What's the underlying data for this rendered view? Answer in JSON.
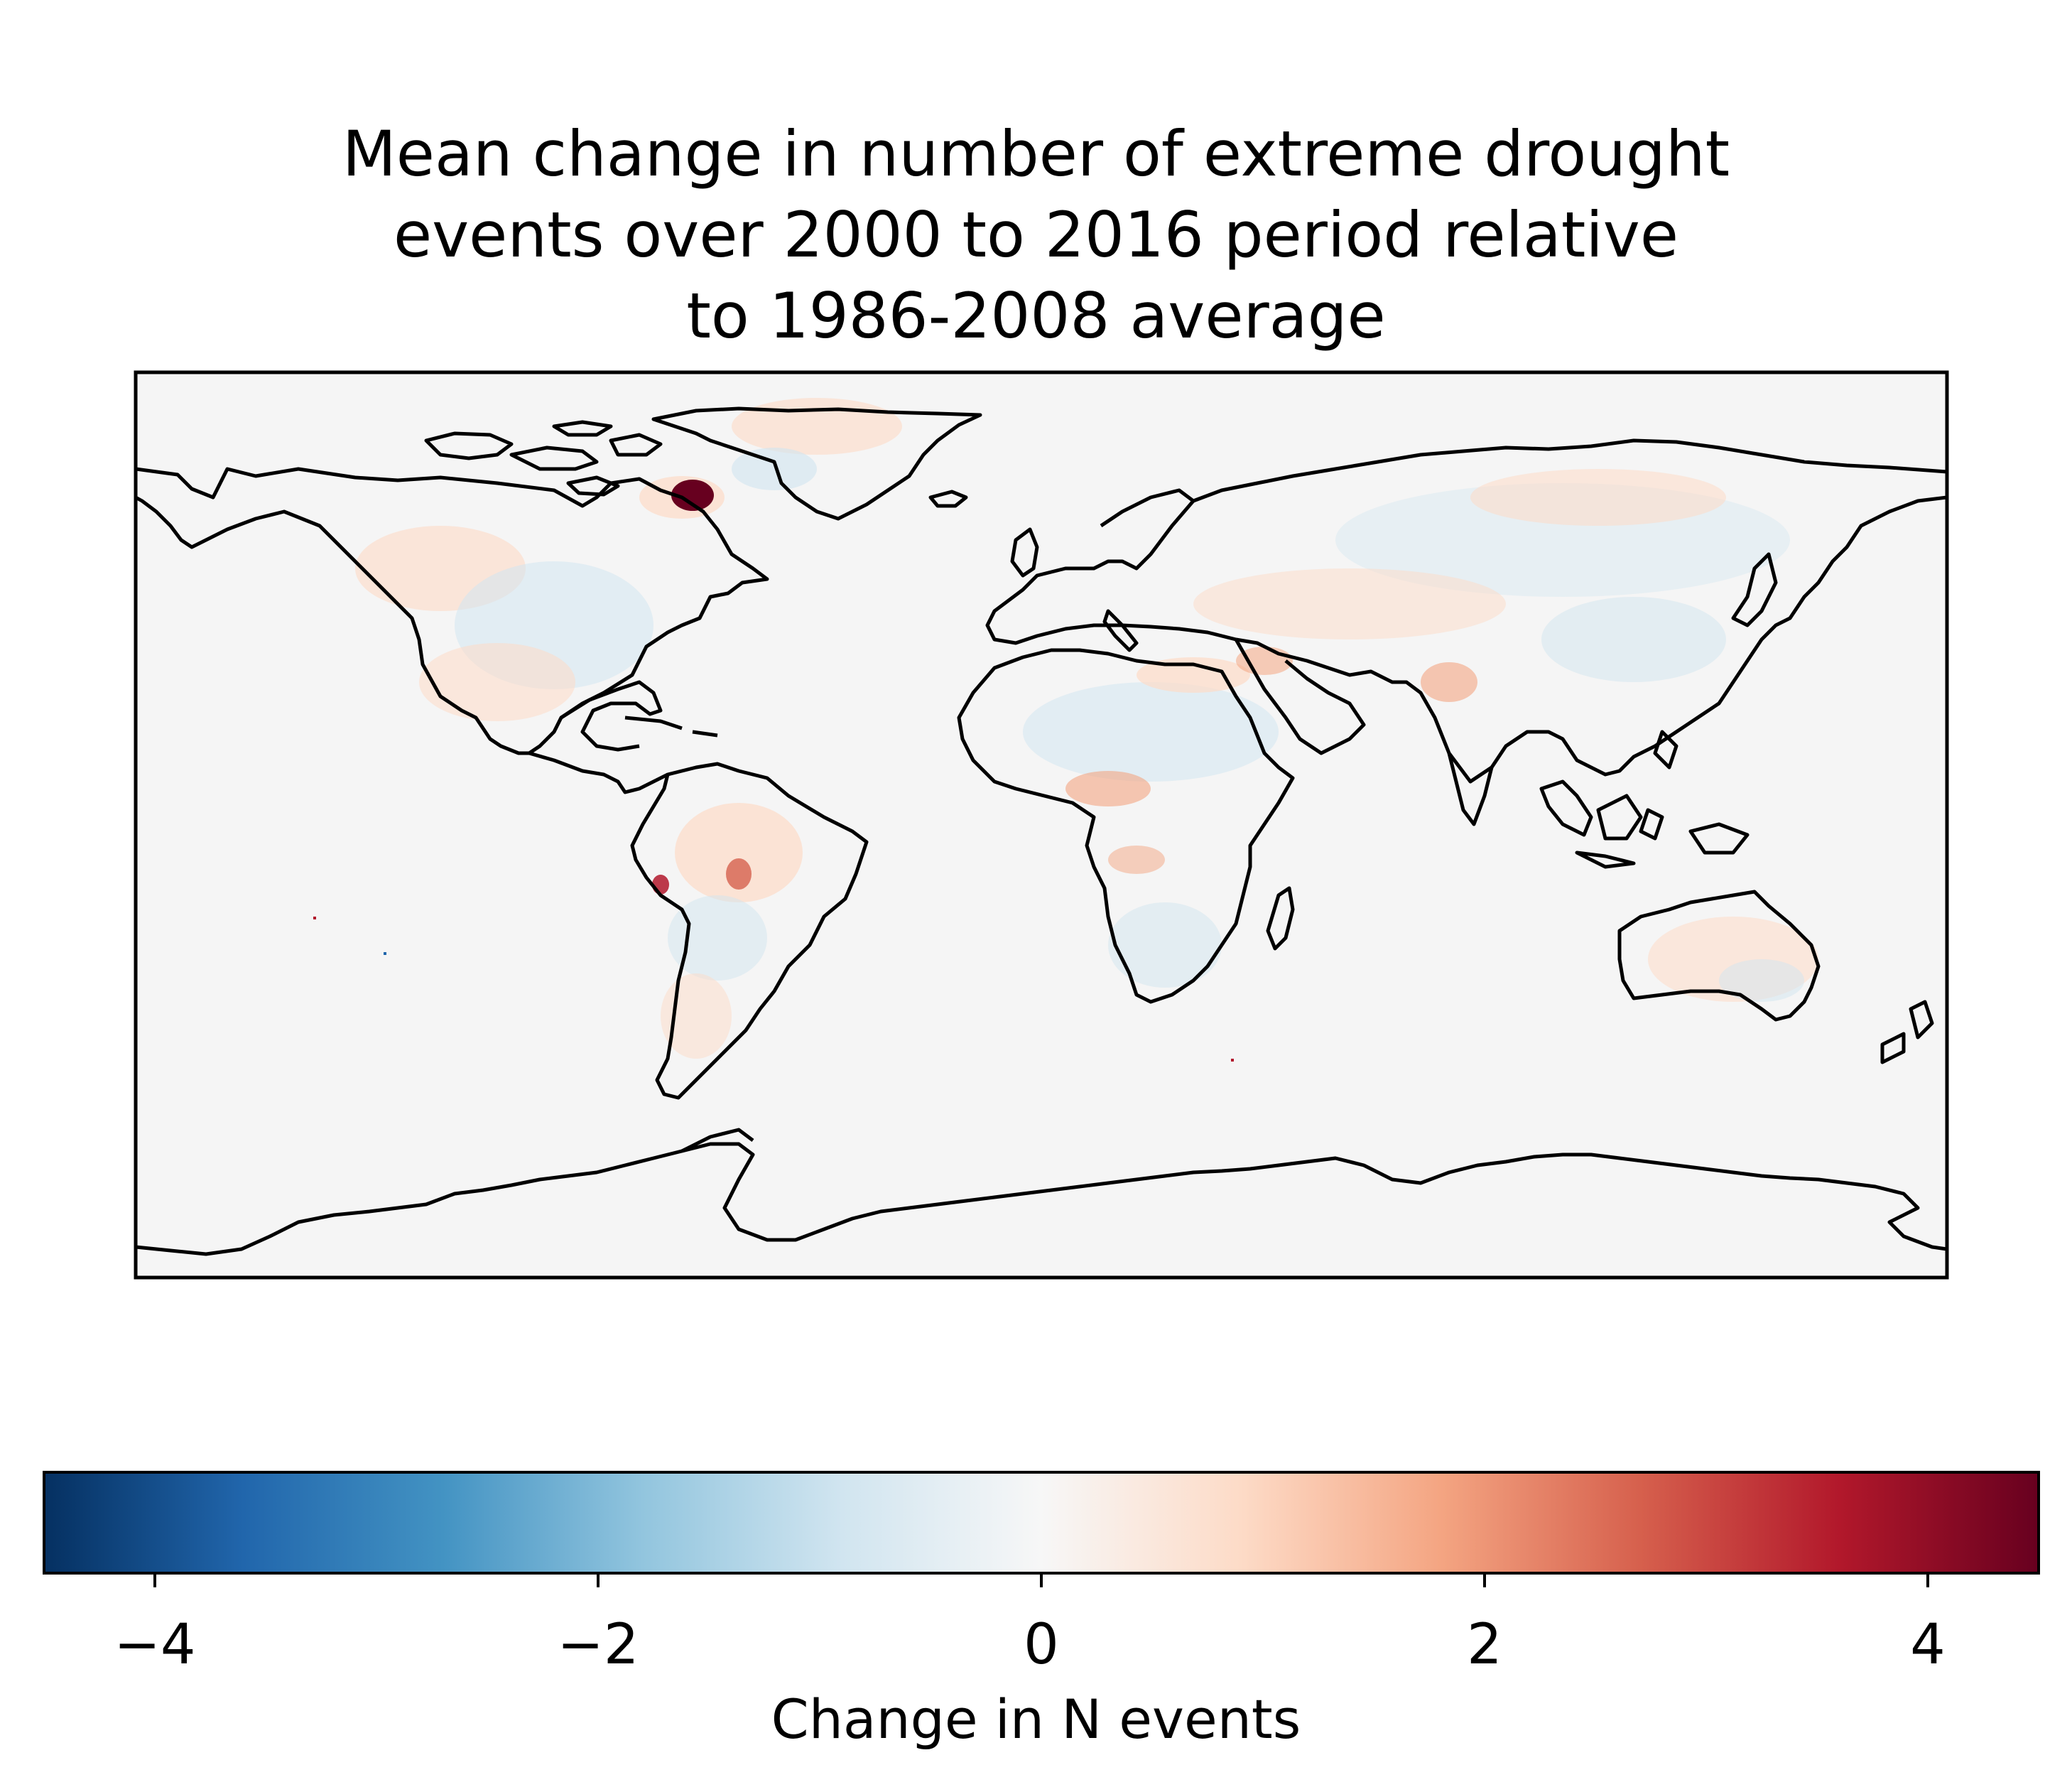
{
  "title_lines": [
    "Mean change in number of extreme drought",
    "events over 2000 to 2016 period relative",
    "to 1986-2008 average"
  ],
  "colorbar": {
    "label": "Change in N events",
    "colormap": "RdBu_r",
    "range": [
      -4.5,
      4.5
    ],
    "ticks": [
      -4,
      -2,
      0,
      2,
      4
    ],
    "tick_labels": [
      "−4",
      "−2",
      "0",
      "2",
      "4"
    ],
    "colors": [
      "#053061",
      "#2166ac",
      "#4393c3",
      "#92c5de",
      "#d1e5f0",
      "#f7f7f7",
      "#fddbc7",
      "#f4a582",
      "#d6604d",
      "#b2182b",
      "#67001f"
    ]
  },
  "map": {
    "projection": "plate carree (global)",
    "background_color": "#f5f5f5",
    "coastline_color": "#000000"
  }
}
